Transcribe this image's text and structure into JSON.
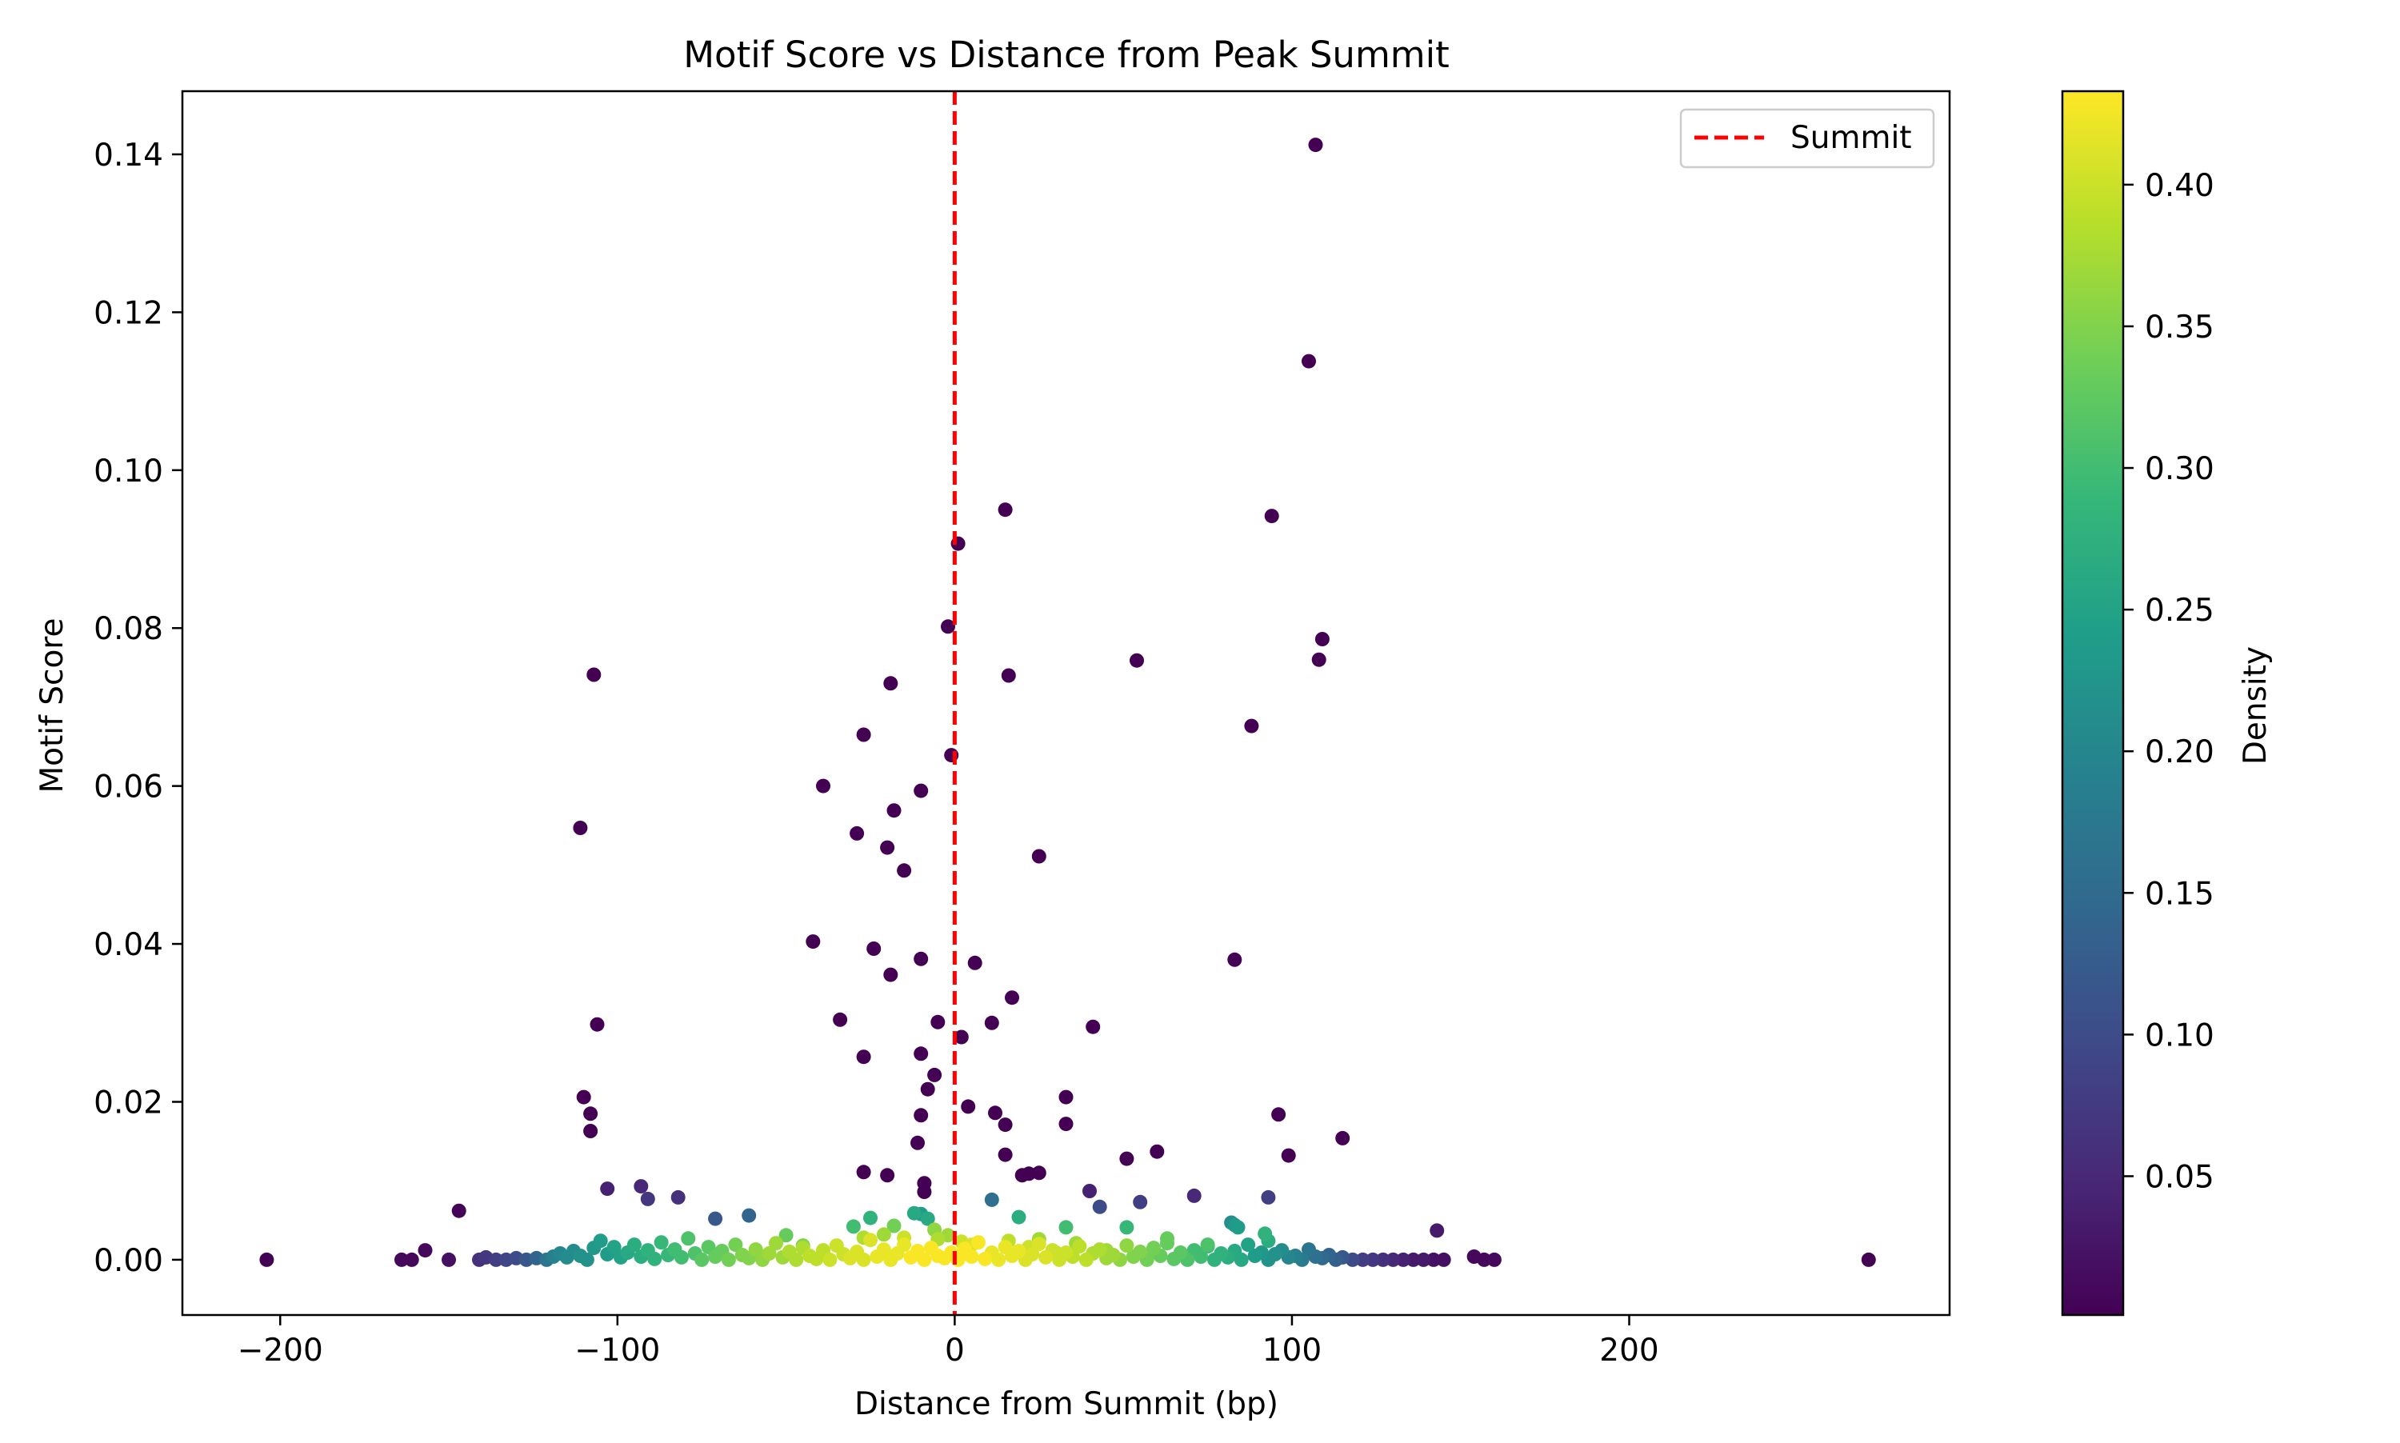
{
  "chart_data": {
    "type": "scatter",
    "title": "Motif Score vs Distance from Peak Summit",
    "xlabel": "Distance from Summit (bp)",
    "ylabel": "Motif Score",
    "xlim": [
      -229,
      295
    ],
    "ylim": [
      -0.007,
      0.148
    ],
    "xticks": [
      -200,
      -100,
      0,
      100,
      200
    ],
    "xtick_labels": [
      "−200",
      "−100",
      "0",
      "100",
      "200"
    ],
    "yticks": [
      0.0,
      0.02,
      0.04,
      0.06,
      0.08,
      0.1,
      0.12,
      0.14
    ],
    "ytick_labels": [
      "0.00",
      "0.02",
      "0.04",
      "0.06",
      "0.08",
      "0.10",
      "0.12",
      "0.14"
    ],
    "grid": false,
    "legend": {
      "position": "top-right",
      "entries": [
        {
          "label": "Summit",
          "color": "#ff0000",
          "style": "dashed"
        }
      ]
    },
    "reference_line": {
      "axis": "x",
      "value": 0,
      "label": "Summit",
      "color": "#ff0000",
      "style": "dashed"
    },
    "colorbar": {
      "label": "Density",
      "colormap": "viridis",
      "range": [
        0.001,
        0.433
      ],
      "ticks": [
        0.05,
        0.1,
        0.15,
        0.2,
        0.25,
        0.3,
        0.35,
        0.4
      ],
      "tick_labels": [
        "0.05",
        "0.10",
        "0.15",
        "0.20",
        "0.25",
        "0.30",
        "0.35",
        "0.40"
      ]
    },
    "points": [
      [
        -204,
        0.0,
        0.002
      ],
      [
        -164,
        0.0,
        0.01
      ],
      [
        -161,
        0.0,
        0.01
      ],
      [
        -157,
        0.0012,
        0.01
      ],
      [
        -150,
        0.0,
        0.02
      ],
      [
        -147,
        0.0062,
        0.005
      ],
      [
        -141,
        0.0,
        0.06
      ],
      [
        -139,
        0.0003,
        0.07
      ],
      [
        -136,
        0.0,
        0.08
      ],
      [
        -133,
        0.0,
        0.09
      ],
      [
        -130,
        0.0002,
        0.1
      ],
      [
        -127,
        0.0,
        0.12
      ],
      [
        -124,
        0.0002,
        0.14
      ],
      [
        -121,
        0.0,
        0.17
      ],
      [
        -119,
        0.0004,
        0.19
      ],
      [
        -117,
        0.0008,
        0.2
      ],
      [
        -115,
        0.0003,
        0.21
      ],
      [
        -113,
        0.0011,
        0.21
      ],
      [
        -111,
        0.0005,
        0.22
      ],
      [
        -109,
        0.0,
        0.22
      ],
      [
        -107,
        0.0015,
        0.23
      ],
      [
        -105,
        0.0024,
        0.24
      ],
      [
        -103,
        0.0007,
        0.24
      ],
      [
        -101,
        0.0016,
        0.25
      ],
      [
        -99,
        0.0003,
        0.25
      ],
      [
        -97,
        0.0009,
        0.26
      ],
      [
        -95,
        0.0019,
        0.27
      ],
      [
        -93,
        0.0004,
        0.27
      ],
      [
        -91,
        0.0012,
        0.28
      ],
      [
        -89,
        0.0001,
        0.28
      ],
      [
        -87,
        0.0022,
        0.29
      ],
      [
        -85,
        0.0006,
        0.29
      ],
      [
        -83,
        0.0013,
        0.3
      ],
      [
        -81,
        0.0003,
        0.3
      ],
      [
        -79,
        0.0027,
        0.31
      ],
      [
        -77,
        0.0008,
        0.31
      ],
      [
        -75,
        0.0,
        0.32
      ],
      [
        -73,
        0.0016,
        0.32
      ],
      [
        -71,
        0.0004,
        0.33
      ],
      [
        -69,
        0.0011,
        0.33
      ],
      [
        -67,
        0.0,
        0.34
      ],
      [
        -65,
        0.0019,
        0.34
      ],
      [
        -63,
        0.0006,
        0.35
      ],
      [
        -61,
        0.0002,
        0.35
      ],
      [
        -59,
        0.0013,
        0.36
      ],
      [
        -57,
        0.0,
        0.36
      ],
      [
        -55,
        0.0008,
        0.37
      ],
      [
        -53,
        0.0021,
        0.37
      ],
      [
        -51,
        0.0003,
        0.37
      ],
      [
        -49,
        0.001,
        0.38
      ],
      [
        -47,
        0.0,
        0.38
      ],
      [
        -45,
        0.0015,
        0.38
      ],
      [
        -43,
        0.0005,
        0.39
      ],
      [
        -41,
        0.0001,
        0.39
      ],
      [
        -39,
        0.0012,
        0.39
      ],
      [
        -37,
        0.0,
        0.4
      ],
      [
        -35,
        0.0018,
        0.4
      ],
      [
        -33,
        0.0007,
        0.4
      ],
      [
        -31,
        0.0002,
        0.41
      ],
      [
        -29,
        0.001,
        0.41
      ],
      [
        -27,
        0.0,
        0.41
      ],
      [
        -25,
        0.0025,
        0.41
      ],
      [
        -23,
        0.0004,
        0.42
      ],
      [
        -21,
        0.0013,
        0.42
      ],
      [
        -19,
        0.0,
        0.42
      ],
      [
        -17,
        0.0008,
        0.42
      ],
      [
        -15,
        0.0019,
        0.42
      ],
      [
        -13,
        0.0003,
        0.43
      ],
      [
        -11,
        0.0011,
        0.43
      ],
      [
        -9,
        0.0,
        0.43
      ],
      [
        -7,
        0.0015,
        0.43
      ],
      [
        -5,
        0.0005,
        0.43
      ],
      [
        -3,
        0.0002,
        0.43
      ],
      [
        -1,
        0.0009,
        0.43
      ],
      [
        1,
        0.0,
        0.43
      ],
      [
        3,
        0.0014,
        0.43
      ],
      [
        5,
        0.0004,
        0.43
      ],
      [
        7,
        0.0022,
        0.43
      ],
      [
        9,
        0.0001,
        0.43
      ],
      [
        11,
        0.0009,
        0.42
      ],
      [
        13,
        0.0,
        0.42
      ],
      [
        15,
        0.0016,
        0.42
      ],
      [
        17,
        0.0005,
        0.42
      ],
      [
        19,
        0.0011,
        0.42
      ],
      [
        21,
        0.0,
        0.41
      ],
      [
        23,
        0.0007,
        0.41
      ],
      [
        25,
        0.002,
        0.41
      ],
      [
        27,
        0.0003,
        0.41
      ],
      [
        29,
        0.0012,
        0.4
      ],
      [
        31,
        0.0,
        0.4
      ],
      [
        33,
        0.0009,
        0.4
      ],
      [
        35,
        0.0004,
        0.39
      ],
      [
        37,
        0.0017,
        0.39
      ],
      [
        39,
        0.0,
        0.39
      ],
      [
        41,
        0.0008,
        0.38
      ],
      [
        43,
        0.0013,
        0.38
      ],
      [
        45,
        0.0002,
        0.37
      ],
      [
        47,
        0.0006,
        0.37
      ],
      [
        49,
        0.0,
        0.36
      ],
      [
        51,
        0.0018,
        0.36
      ],
      [
        53,
        0.0004,
        0.35
      ],
      [
        55,
        0.001,
        0.35
      ],
      [
        57,
        0.0,
        0.34
      ],
      [
        59,
        0.0014,
        0.34
      ],
      [
        61,
        0.0005,
        0.33
      ],
      [
        63,
        0.0021,
        0.33
      ],
      [
        65,
        0.0001,
        0.32
      ],
      [
        67,
        0.0009,
        0.32
      ],
      [
        69,
        0.0,
        0.31
      ],
      [
        71,
        0.0012,
        0.3
      ],
      [
        73,
        0.0004,
        0.3
      ],
      [
        75,
        0.0017,
        0.29
      ],
      [
        77,
        0.0,
        0.28
      ],
      [
        79,
        0.0008,
        0.28
      ],
      [
        81,
        0.0003,
        0.27
      ],
      [
        83,
        0.0011,
        0.26
      ],
      [
        85,
        0.0,
        0.26
      ],
      [
        87,
        0.0019,
        0.25
      ],
      [
        89,
        0.0005,
        0.24
      ],
      [
        91,
        0.0009,
        0.23
      ],
      [
        93,
        0.0,
        0.22
      ],
      [
        95,
        0.0007,
        0.22
      ],
      [
        97,
        0.0012,
        0.21
      ],
      [
        99,
        0.0003,
        0.2
      ],
      [
        101,
        0.0005,
        0.19
      ],
      [
        103,
        0.0,
        0.18
      ],
      [
        105,
        0.0013,
        0.17
      ],
      [
        107,
        0.0004,
        0.16
      ],
      [
        109,
        0.0002,
        0.15
      ],
      [
        111,
        0.0006,
        0.14
      ],
      [
        113,
        0.0,
        0.13
      ],
      [
        115,
        0.0003,
        0.12
      ],
      [
        118,
        0.0,
        0.1
      ],
      [
        121,
        0.0,
        0.08
      ],
      [
        124,
        0.0,
        0.07
      ],
      [
        127,
        0.0,
        0.06
      ],
      [
        130,
        0.0,
        0.05
      ],
      [
        133,
        0.0,
        0.04
      ],
      [
        136,
        0.0,
        0.03
      ],
      [
        139,
        0.0,
        0.03
      ],
      [
        142,
        0.0,
        0.02
      ],
      [
        145,
        0.0,
        0.02
      ],
      [
        154,
        0.0004,
        0.01
      ],
      [
        157,
        0.0,
        0.01
      ],
      [
        160,
        0.0,
        0.01
      ],
      [
        271,
        0.0,
        0.002
      ],
      [
        -103,
        0.009,
        0.04
      ],
      [
        -93,
        0.0093,
        0.05
      ],
      [
        -91,
        0.0077,
        0.07
      ],
      [
        -82,
        0.0079,
        0.06
      ],
      [
        -71,
        0.0052,
        0.12
      ],
      [
        -61,
        0.0056,
        0.14
      ],
      [
        -50,
        0.0031,
        0.33
      ],
      [
        -45,
        0.0018,
        0.35
      ],
      [
        -30,
        0.0042,
        0.3
      ],
      [
        -27,
        0.0028,
        0.38
      ],
      [
        -25,
        0.0053,
        0.28
      ],
      [
        -21,
        0.0032,
        0.37
      ],
      [
        -18,
        0.0043,
        0.34
      ],
      [
        -15,
        0.0028,
        0.4
      ],
      [
        -12,
        0.0059,
        0.26
      ],
      [
        -10,
        0.0058,
        0.24
      ],
      [
        -8,
        0.0052,
        0.26
      ],
      [
        -6,
        0.0038,
        0.36
      ],
      [
        -5,
        0.0026,
        0.38
      ],
      [
        -2,
        0.0031,
        0.37
      ],
      [
        2,
        0.0023,
        0.4
      ],
      [
        5,
        0.0019,
        0.41
      ],
      [
        11,
        0.0076,
        0.16
      ],
      [
        16,
        0.0024,
        0.39
      ],
      [
        19,
        0.0054,
        0.27
      ],
      [
        22,
        0.0016,
        0.4
      ],
      [
        25,
        0.0026,
        0.37
      ],
      [
        30,
        0.0009,
        0.39
      ],
      [
        33,
        0.0041,
        0.3
      ],
      [
        36,
        0.0021,
        0.37
      ],
      [
        40,
        0.0087,
        0.04
      ],
      [
        43,
        0.0067,
        0.1
      ],
      [
        45,
        0.0012,
        0.37
      ],
      [
        51,
        0.0041,
        0.29
      ],
      [
        55,
        0.0073,
        0.08
      ],
      [
        59,
        0.0015,
        0.34
      ],
      [
        63,
        0.0027,
        0.33
      ],
      [
        71,
        0.0081,
        0.05
      ],
      [
        75,
        0.0019,
        0.31
      ],
      [
        82,
        0.0047,
        0.21
      ],
      [
        83,
        0.0044,
        0.23
      ],
      [
        84,
        0.0041,
        0.24
      ],
      [
        92,
        0.0033,
        0.28
      ],
      [
        93,
        0.0024,
        0.27
      ],
      [
        93,
        0.0079,
        0.08
      ],
      [
        143,
        0.0037,
        0.03
      ],
      [
        -111,
        0.0547,
        0.001
      ],
      [
        -107,
        0.0741,
        0.001
      ],
      [
        -106,
        0.0298,
        0.001
      ],
      [
        -110,
        0.0206,
        0.001
      ],
      [
        -108,
        0.0185,
        0.001
      ],
      [
        -108,
        0.0163,
        0.001
      ],
      [
        -42,
        0.0403,
        0.001
      ],
      [
        -39,
        0.06,
        0.001
      ],
      [
        -34,
        0.0304,
        0.001
      ],
      [
        -29,
        0.054,
        0.001
      ],
      [
        -27,
        0.0665,
        0.001
      ],
      [
        -27,
        0.0257,
        0.001
      ],
      [
        -27,
        0.0111,
        0.001
      ],
      [
        -24,
        0.0394,
        0.001
      ],
      [
        -20,
        0.0522,
        0.001
      ],
      [
        -19,
        0.073,
        0.001
      ],
      [
        -19,
        0.0361,
        0.001
      ],
      [
        -18,
        0.0569,
        0.001
      ],
      [
        -15,
        0.0493,
        0.001
      ],
      [
        -20,
        0.0107,
        0.001
      ],
      [
        -10,
        0.0594,
        0.001
      ],
      [
        -10,
        0.0381,
        0.001
      ],
      [
        -10,
        0.0261,
        0.001
      ],
      [
        -10,
        0.0183,
        0.001
      ],
      [
        -11,
        0.0148,
        0.001
      ],
      [
        -9,
        0.0097,
        0.001
      ],
      [
        -9,
        0.0086,
        0.001
      ],
      [
        -8,
        0.0216,
        0.001
      ],
      [
        -6,
        0.0234,
        0.001
      ],
      [
        -5,
        0.0301,
        0.001
      ],
      [
        -2,
        0.0802,
        0.001
      ],
      [
        -1,
        0.0639,
        0.001
      ],
      [
        1,
        0.0907,
        0.001
      ],
      [
        2,
        0.0282,
        0.001
      ],
      [
        4,
        0.0194,
        0.001
      ],
      [
        6,
        0.0376,
        0.001
      ],
      [
        11,
        0.03,
        0.001
      ],
      [
        12,
        0.0186,
        0.001
      ],
      [
        15,
        0.095,
        0.001
      ],
      [
        16,
        0.074,
        0.001
      ],
      [
        15,
        0.0171,
        0.001
      ],
      [
        15,
        0.0133,
        0.001
      ],
      [
        17,
        0.0332,
        0.001
      ],
      [
        20,
        0.0107,
        0.001
      ],
      [
        22,
        0.0109,
        0.001
      ],
      [
        25,
        0.011,
        0.001
      ],
      [
        25,
        0.0511,
        0.001
      ],
      [
        33,
        0.0206,
        0.001
      ],
      [
        33,
        0.0172,
        0.001
      ],
      [
        41,
        0.0295,
        0.001
      ],
      [
        51,
        0.0128,
        0.001
      ],
      [
        54,
        0.0759,
        0.001
      ],
      [
        60,
        0.0137,
        0.001
      ],
      [
        83,
        0.038,
        0.001
      ],
      [
        88,
        0.0676,
        0.001
      ],
      [
        94,
        0.0942,
        0.001
      ],
      [
        96,
        0.0184,
        0.001
      ],
      [
        99,
        0.0132,
        0.001
      ],
      [
        105,
        0.1138,
        0.001
      ],
      [
        107,
        0.1412,
        0.001
      ],
      [
        108,
        0.076,
        0.001
      ],
      [
        109,
        0.0786,
        0.001
      ],
      [
        115,
        0.0154,
        0.001
      ]
    ]
  }
}
